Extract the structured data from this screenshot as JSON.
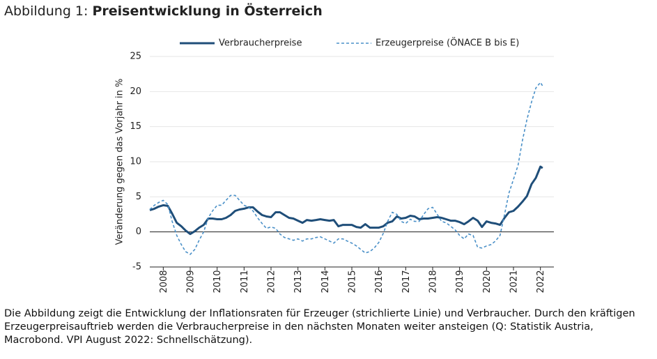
{
  "chart_data": {
    "type": "line",
    "title": "Abbildung 1:",
    "title_emphasis": "Preisentwicklung in Österreich",
    "y_label": "Veränderung gegen das Vorjahr in %",
    "caption": "Die Abbildung zeigt die Entwicklung der Inflationsraten für Erzeuger (strichlierte Linie) und Verbraucher. Durch den kräftigen Erzeugerpreisauftrieb werden die Verbraucherpreise in den nächsten Monaten weiter ansteigen (Q: Statistik Austria, Macrobond. VPI August 2022: Schnellschätzung).",
    "legend": "top",
    "grid": true,
    "xlim": [
      2008,
      2023
    ],
    "xticks": [
      {
        "value": 2008.5,
        "label": "2008"
      },
      {
        "value": 2009.5,
        "label": "2009"
      },
      {
        "value": 2010.5,
        "label": "2010"
      },
      {
        "value": 2011.5,
        "label": "2011"
      },
      {
        "value": 2012.5,
        "label": "2012"
      },
      {
        "value": 2013.5,
        "label": "2013"
      },
      {
        "value": 2014.5,
        "label": "2014"
      },
      {
        "value": 2015.5,
        "label": "2015"
      },
      {
        "value": 2016.5,
        "label": "2016"
      },
      {
        "value": 2017.5,
        "label": "2017"
      },
      {
        "value": 2018.5,
        "label": "2018"
      },
      {
        "value": 2019.5,
        "label": "2019"
      },
      {
        "value": 2020.5,
        "label": "2020"
      },
      {
        "value": 2021.5,
        "label": "2021"
      },
      {
        "value": 2022.5,
        "label": "2022"
      }
    ],
    "ylim": [
      -5,
      25
    ],
    "yticks": [
      -5,
      0,
      5,
      10,
      15,
      20,
      25
    ],
    "x": [
      2008,
      2008.17,
      2008.33,
      2008.5,
      2008.67,
      2008.83,
      2009,
      2009.17,
      2009.33,
      2009.5,
      2009.67,
      2009.83,
      2010,
      2010.17,
      2010.33,
      2010.5,
      2010.67,
      2010.83,
      2011,
      2011.17,
      2011.33,
      2011.5,
      2011.67,
      2011.83,
      2012,
      2012.17,
      2012.33,
      2012.5,
      2012.67,
      2012.83,
      2013,
      2013.17,
      2013.33,
      2013.5,
      2013.67,
      2013.83,
      2014,
      2014.17,
      2014.33,
      2014.5,
      2014.67,
      2014.83,
      2015,
      2015.17,
      2015.33,
      2015.5,
      2015.67,
      2015.83,
      2016,
      2016.17,
      2016.33,
      2016.5,
      2016.67,
      2016.83,
      2017,
      2017.17,
      2017.33,
      2017.5,
      2017.67,
      2017.83,
      2018,
      2018.17,
      2018.33,
      2018.5,
      2018.67,
      2018.83,
      2019,
      2019.17,
      2019.33,
      2019.5,
      2019.67,
      2019.83,
      2020,
      2020.17,
      2020.33,
      2020.5,
      2020.67,
      2020.83,
      2021,
      2021.17,
      2021.33,
      2021.5,
      2021.67,
      2021.83,
      2022,
      2022.17,
      2022.33,
      2022.5,
      2022.58
    ],
    "series": [
      {
        "name": "Verbraucherpreise",
        "color": "#1f4e79",
        "style": "solid",
        "values": [
          3.1,
          3.3,
          3.6,
          3.8,
          3.7,
          2.6,
          1.3,
          0.8,
          0.2,
          -0.3,
          0.1,
          0.6,
          1.0,
          1.9,
          1.9,
          1.8,
          1.8,
          2.0,
          2.4,
          3.0,
          3.2,
          3.3,
          3.5,
          3.5,
          2.9,
          2.4,
          2.2,
          2.1,
          2.8,
          2.8,
          2.4,
          2.0,
          1.9,
          1.6,
          1.3,
          1.7,
          1.6,
          1.7,
          1.8,
          1.7,
          1.6,
          1.7,
          0.8,
          1.0,
          1.0,
          1.0,
          0.7,
          0.6,
          1.1,
          0.6,
          0.6,
          0.6,
          0.8,
          1.3,
          1.5,
          2.2,
          1.9,
          2.0,
          2.3,
          2.2,
          1.8,
          1.9,
          1.9,
          2.0,
          2.1,
          2.0,
          1.8,
          1.6,
          1.6,
          1.4,
          1.1,
          1.5,
          2.0,
          1.6,
          0.7,
          1.5,
          1.3,
          1.2,
          1.0,
          2.0,
          2.8,
          3.0,
          3.6,
          4.3,
          5.1,
          6.8,
          7.7,
          9.3,
          9.1
        ]
      },
      {
        "name": "Erzeugerpreise (ÖNACE B bis E)",
        "color": "#4a90c8",
        "style": "dashed",
        "values": [
          3.2,
          3.8,
          4.2,
          4.5,
          3.9,
          1.5,
          -0.5,
          -1.8,
          -2.8,
          -3.2,
          -2.5,
          -1.2,
          0.0,
          2.0,
          3.0,
          3.8,
          3.8,
          4.5,
          5.2,
          5.2,
          4.5,
          3.8,
          3.5,
          3.0,
          2.0,
          1.2,
          0.5,
          0.7,
          0.5,
          -0.3,
          -0.8,
          -1.0,
          -1.2,
          -1.0,
          -1.3,
          -1.0,
          -1.0,
          -0.8,
          -0.7,
          -1.0,
          -1.3,
          -1.6,
          -1.0,
          -1.0,
          -1.3,
          -1.6,
          -2.0,
          -2.5,
          -3.0,
          -2.8,
          -2.3,
          -1.5,
          -0.2,
          1.5,
          2.8,
          2.5,
          1.5,
          1.2,
          1.8,
          1.5,
          1.5,
          2.5,
          3.3,
          3.5,
          2.5,
          1.5,
          1.3,
          0.8,
          0.3,
          -0.5,
          -1.0,
          -0.3,
          -0.5,
          -2.2,
          -2.3,
          -2.0,
          -1.8,
          -1.3,
          -0.5,
          2.5,
          5.5,
          7.5,
          9.5,
          13.0,
          16.0,
          18.5,
          20.5,
          21.3,
          20.8
        ]
      }
    ]
  }
}
